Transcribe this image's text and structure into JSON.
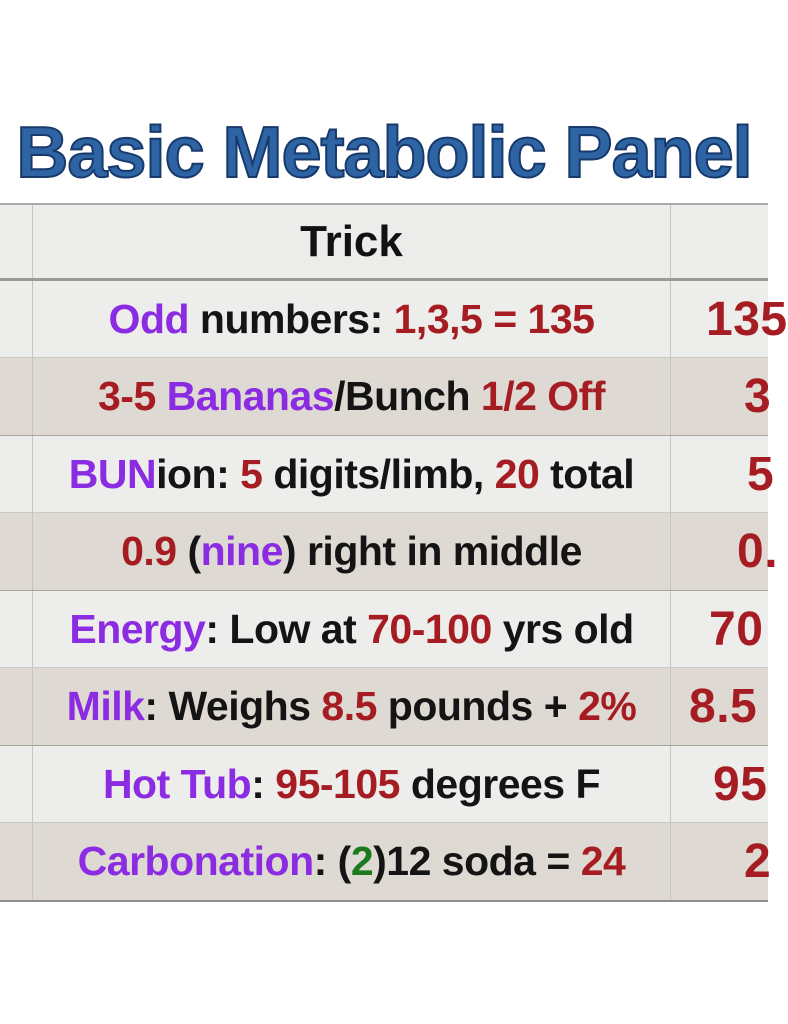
{
  "title": "Basic Metabolic Panel",
  "colors": {
    "title_fill": "#2e64a4",
    "title_outline": "#17396b",
    "purple": "#8b2be2",
    "red": "#a51d22",
    "black": "#141414",
    "green": "#1b7a1e",
    "header_bg": "#ececea",
    "row_light_bg": "#ededeb",
    "row_dark_bg": "#dedad3"
  },
  "table": {
    "header": {
      "trick_label": "Trick"
    },
    "rows": [
      {
        "bg": "light",
        "segments": [
          {
            "t": "Odd",
            "c": "purple"
          },
          {
            "t": " numbers: ",
            "c": "black"
          },
          {
            "t": "1,3,5 = 135",
            "c": "red"
          }
        ],
        "value": {
          "t": "135",
          "c": "red",
          "indent": 35
        }
      },
      {
        "bg": "dark",
        "segments": [
          {
            "t": "3-5 ",
            "c": "red"
          },
          {
            "t": "Bananas",
            "c": "purple"
          },
          {
            "t": "/Bunch ",
            "c": "black"
          },
          {
            "t": "1/2 Off",
            "c": "red"
          }
        ],
        "value": {
          "t": "3",
          "c": "red",
          "indent": 73
        }
      },
      {
        "bg": "light",
        "segments": [
          {
            "t": "BUN",
            "c": "purple"
          },
          {
            "t": "ion: ",
            "c": "black"
          },
          {
            "t": "5",
            "c": "red"
          },
          {
            "t": " digits/limb, ",
            "c": "black"
          },
          {
            "t": "20",
            "c": "red"
          },
          {
            "t": " total",
            "c": "black"
          }
        ],
        "value": {
          "t": "5",
          "c": "red",
          "indent": 76
        }
      },
      {
        "bg": "dark",
        "segments": [
          {
            "t": "0.9 ",
            "c": "red"
          },
          {
            "t": "(",
            "c": "black"
          },
          {
            "t": "nine",
            "c": "purple"
          },
          {
            "t": ") right in middle",
            "c": "black"
          }
        ],
        "value": {
          "t": "0.",
          "c": "red",
          "indent": 66
        }
      },
      {
        "bg": "light",
        "segments": [
          {
            "t": "Energy",
            "c": "purple"
          },
          {
            "t": ": Low at ",
            "c": "black"
          },
          {
            "t": "70-100",
            "c": "red"
          },
          {
            "t": " yrs old",
            "c": "black"
          }
        ],
        "value": {
          "t": "70",
          "c": "red",
          "indent": 38
        }
      },
      {
        "bg": "dark",
        "segments": [
          {
            "t": "Milk",
            "c": "purple"
          },
          {
            "t": ": Weighs ",
            "c": "black"
          },
          {
            "t": "8.5",
            "c": "red"
          },
          {
            "t": " pounds + ",
            "c": "black"
          },
          {
            "t": "2%",
            "c": "red"
          }
        ],
        "value": {
          "t": "8.5",
          "c": "red",
          "indent": 18
        }
      },
      {
        "bg": "light",
        "segments": [
          {
            "t": "Hot Tub",
            "c": "purple"
          },
          {
            "t": ": ",
            "c": "black"
          },
          {
            "t": "95-105",
            "c": "red"
          },
          {
            "t": " degrees F",
            "c": "black"
          }
        ],
        "value": {
          "t": "95",
          "c": "red",
          "indent": 42
        }
      },
      {
        "bg": "dark",
        "segments": [
          {
            "t": "Carbonation",
            "c": "purple"
          },
          {
            "t": ": (",
            "c": "black"
          },
          {
            "t": "2",
            "c": "green"
          },
          {
            "t": ")12 soda = ",
            "c": "black"
          },
          {
            "t": "24",
            "c": "red"
          }
        ],
        "value": {
          "t": "2",
          "c": "red",
          "indent": 73
        }
      }
    ]
  }
}
